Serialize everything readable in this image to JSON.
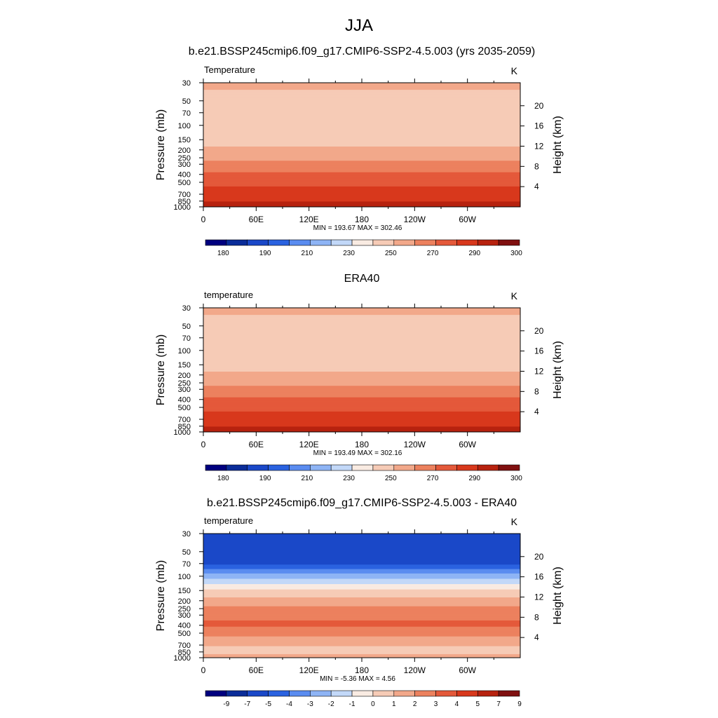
{
  "figure": {
    "title": "JJA"
  },
  "chart_data": [
    {
      "type": "heatmap",
      "title": "b.e21.BSSP245cmip6.f09_g17.CMIP6-SSP2-4.5.003 (yrs 2035-2059)",
      "left_label": "Temperature",
      "unit_label": "K",
      "ylabel": "Pressure (mb)",
      "y2label": "Height (km)",
      "x_ticks": [
        "0",
        "60E",
        "120E",
        "180",
        "120W",
        "60W"
      ],
      "y_ticks": [
        "30",
        "50",
        "70",
        "100",
        "150",
        "200",
        "250",
        "300",
        "400",
        "500",
        "700",
        "850",
        "1000"
      ],
      "y2_ticks": [
        "20",
        "16",
        "12",
        "8",
        "4"
      ],
      "stats": "MIN = 193.67  MAX = 302.46",
      "levels": [
        "180",
        "190",
        "210",
        "230",
        "250",
        "270",
        "290",
        "300"
      ],
      "colorbar": {
        "colors": [
          "#00007f",
          "#0a2c99",
          "#1a48c8",
          "#2a62e0",
          "#5a8cf0",
          "#8eb4f5",
          "#c2d8f8",
          "#f9ebe2",
          "#f6cbb6",
          "#f2a88a",
          "#ec815e",
          "#e4593a",
          "#d8381c",
          "#b7220f",
          "#801010"
        ]
      },
      "profile": [
        {
          "p": 30,
          "v": 212
        },
        {
          "p": 50,
          "v": 207
        },
        {
          "p": 70,
          "v": 200
        },
        {
          "p": 100,
          "v": 196
        },
        {
          "p": 150,
          "v": 203
        },
        {
          "p": 200,
          "v": 213
        },
        {
          "p": 250,
          "v": 224
        },
        {
          "p": 300,
          "v": 237
        },
        {
          "p": 400,
          "v": 253
        },
        {
          "p": 500,
          "v": 264
        },
        {
          "p": 700,
          "v": 280
        },
        {
          "p": 850,
          "v": 289
        },
        {
          "p": 1000,
          "v": 300
        }
      ]
    },
    {
      "type": "heatmap",
      "title": "ERA40",
      "left_label": "temperature",
      "unit_label": "K",
      "ylabel": "Pressure (mb)",
      "y2label": "Height (km)",
      "x_ticks": [
        "0",
        "60E",
        "120E",
        "180",
        "120W",
        "60W"
      ],
      "y_ticks": [
        "30",
        "50",
        "70",
        "100",
        "150",
        "200",
        "250",
        "300",
        "400",
        "500",
        "700",
        "850",
        "1000"
      ],
      "y2_ticks": [
        "20",
        "16",
        "12",
        "8",
        "4"
      ],
      "stats": "MIN = 193.49  MAX = 302.16",
      "levels": [
        "180",
        "190",
        "210",
        "230",
        "250",
        "270",
        "290",
        "300"
      ],
      "colorbar": {
        "colors": [
          "#00007f",
          "#0a2c99",
          "#1a48c8",
          "#2a62e0",
          "#5a8cf0",
          "#8eb4f5",
          "#c2d8f8",
          "#f9ebe2",
          "#f6cbb6",
          "#f2a88a",
          "#ec815e",
          "#e4593a",
          "#d8381c",
          "#b7220f",
          "#801010"
        ]
      },
      "profile": [
        {
          "p": 30,
          "v": 212
        },
        {
          "p": 50,
          "v": 207
        },
        {
          "p": 70,
          "v": 201
        },
        {
          "p": 100,
          "v": 196
        },
        {
          "p": 150,
          "v": 203
        },
        {
          "p": 200,
          "v": 213
        },
        {
          "p": 250,
          "v": 224
        },
        {
          "p": 300,
          "v": 237
        },
        {
          "p": 400,
          "v": 253
        },
        {
          "p": 500,
          "v": 264
        },
        {
          "p": 700,
          "v": 280
        },
        {
          "p": 850,
          "v": 289
        },
        {
          "p": 1000,
          "v": 299
        }
      ]
    },
    {
      "type": "heatmap",
      "title": "b.e21.BSSP245cmip6.f09_g17.CMIP6-SSP2-4.5.003 - ERA40",
      "left_label": "temperature",
      "unit_label": "K",
      "ylabel": "Pressure (mb)",
      "y2label": "Height (km)",
      "x_ticks": [
        "0",
        "60E",
        "120E",
        "180",
        "120W",
        "60W"
      ],
      "y_ticks": [
        "30",
        "50",
        "70",
        "100",
        "150",
        "200",
        "250",
        "300",
        "400",
        "500",
        "700",
        "850",
        "1000"
      ],
      "y2_ticks": [
        "20",
        "16",
        "12",
        "8",
        "4"
      ],
      "stats": "MIN =  -5.36  MAX =   4.56",
      "levels": [
        "-9",
        "-7",
        "-5",
        "-4",
        "-3",
        "-2",
        "-1",
        "0",
        "1",
        "2",
        "3",
        "4",
        "5",
        "7",
        "9"
      ],
      "colorbar": {
        "colors": [
          "#00007f",
          "#0a2c99",
          "#1a48c8",
          "#2a62e0",
          "#5a8cf0",
          "#8eb4f5",
          "#c2d8f8",
          "#f9ebe2",
          "#f6cbb6",
          "#f2a88a",
          "#ec815e",
          "#e4593a",
          "#d8381c",
          "#b7220f",
          "#801010"
        ]
      },
      "profile": [
        {
          "p": 30,
          "v": -4.3
        },
        {
          "p": 50,
          "v": -4.4
        },
        {
          "p": 70,
          "v": -4.2
        },
        {
          "p": 100,
          "v": -1.5
        },
        {
          "p": 150,
          "v": 1.2
        },
        {
          "p": 200,
          "v": 2.4
        },
        {
          "p": 250,
          "v": 3.2
        },
        {
          "p": 300,
          "v": 3.8
        },
        {
          "p": 400,
          "v": 4.2
        },
        {
          "p": 500,
          "v": 3.3
        },
        {
          "p": 700,
          "v": 2.1
        },
        {
          "p": 850,
          "v": 1.6
        },
        {
          "p": 1000,
          "v": 2.5
        }
      ]
    }
  ]
}
